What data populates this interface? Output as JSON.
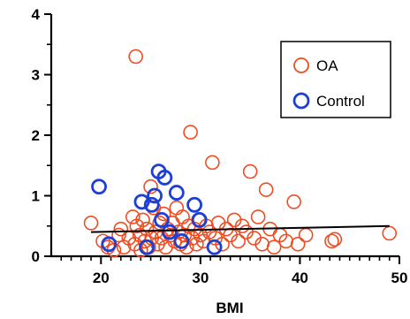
{
  "chart_data": {
    "type": "scatter",
    "xlabel": "BMI",
    "ylabel": "",
    "xlim": [
      15,
      50
    ],
    "ylim": [
      0,
      4
    ],
    "x_ticks": [
      20,
      30,
      40,
      50
    ],
    "y_ticks": [
      0,
      1,
      2,
      3,
      4
    ],
    "grid": false,
    "legend": {
      "placement": "top-right",
      "entries": [
        "OA",
        "Control"
      ]
    },
    "series": [
      {
        "name": "OA",
        "color": "#ee4d22",
        "marker": "open-circle",
        "points": [
          [
            19.0,
            0.55
          ],
          [
            20.2,
            0.25
          ],
          [
            20.7,
            0.15
          ],
          [
            21.3,
            0.1
          ],
          [
            21.8,
            0.35
          ],
          [
            22.0,
            0.45
          ],
          [
            22.3,
            0.15
          ],
          [
            22.8,
            0.3
          ],
          [
            23.2,
            0.65
          ],
          [
            23.4,
            0.2
          ],
          [
            23.5,
            3.3
          ],
          [
            23.6,
            0.5
          ],
          [
            23.9,
            0.35
          ],
          [
            24.0,
            0.1
          ],
          [
            24.2,
            0.6
          ],
          [
            24.4,
            0.25
          ],
          [
            24.6,
            0.45
          ],
          [
            24.8,
            0.15
          ],
          [
            25.0,
            1.15
          ],
          [
            25.1,
            0.3
          ],
          [
            25.3,
            0.8
          ],
          [
            25.5,
            0.4
          ],
          [
            25.7,
            0.2
          ],
          [
            25.9,
            0.55
          ],
          [
            26.1,
            0.3
          ],
          [
            26.3,
            0.7
          ],
          [
            26.5,
            0.15
          ],
          [
            26.7,
            0.45
          ],
          [
            27.0,
            0.35
          ],
          [
            27.2,
            0.55
          ],
          [
            27.4,
            0.25
          ],
          [
            27.6,
            0.8
          ],
          [
            27.8,
            0.4
          ],
          [
            28.0,
            0.2
          ],
          [
            28.2,
            0.65
          ],
          [
            28.4,
            0.35
          ],
          [
            28.6,
            0.15
          ],
          [
            28.8,
            0.5
          ],
          [
            29.0,
            2.05
          ],
          [
            29.2,
            0.3
          ],
          [
            29.4,
            0.45
          ],
          [
            29.6,
            0.2
          ],
          [
            29.8,
            0.6
          ],
          [
            30.0,
            0.35
          ],
          [
            30.3,
            0.25
          ],
          [
            30.6,
            0.5
          ],
          [
            30.9,
            0.4
          ],
          [
            31.2,
            1.55
          ],
          [
            31.5,
            0.3
          ],
          [
            31.8,
            0.55
          ],
          [
            32.2,
            0.2
          ],
          [
            32.6,
            0.45
          ],
          [
            33.0,
            0.35
          ],
          [
            33.4,
            0.6
          ],
          [
            33.8,
            0.25
          ],
          [
            34.2,
            0.5
          ],
          [
            34.6,
            0.4
          ],
          [
            35.0,
            1.4
          ],
          [
            35.4,
            0.3
          ],
          [
            35.8,
            0.65
          ],
          [
            36.2,
            0.2
          ],
          [
            36.6,
            1.1
          ],
          [
            37.0,
            0.45
          ],
          [
            37.4,
            0.15
          ],
          [
            38.0,
            0.35
          ],
          [
            38.6,
            0.25
          ],
          [
            39.4,
            0.9
          ],
          [
            39.8,
            0.2
          ],
          [
            40.6,
            0.35
          ],
          [
            43.2,
            0.25
          ],
          [
            43.5,
            0.28
          ],
          [
            49.0,
            0.38
          ]
        ]
      },
      {
        "name": "Control",
        "color": "#1d3fd6",
        "marker": "open-circle",
        "points": [
          [
            19.8,
            1.15
          ],
          [
            20.8,
            0.2
          ],
          [
            24.1,
            0.9
          ],
          [
            24.6,
            0.15
          ],
          [
            25.1,
            0.85
          ],
          [
            25.4,
            1.0
          ],
          [
            25.8,
            1.4
          ],
          [
            26.1,
            0.6
          ],
          [
            26.4,
            1.3
          ],
          [
            26.9,
            0.4
          ],
          [
            27.6,
            1.05
          ],
          [
            28.1,
            0.25
          ],
          [
            29.4,
            0.85
          ],
          [
            29.9,
            0.6
          ],
          [
            31.4,
            0.15
          ]
        ]
      }
    ],
    "regression_line": {
      "color": "#000000",
      "x": [
        19,
        49
      ],
      "y": [
        0.4,
        0.5
      ]
    }
  }
}
